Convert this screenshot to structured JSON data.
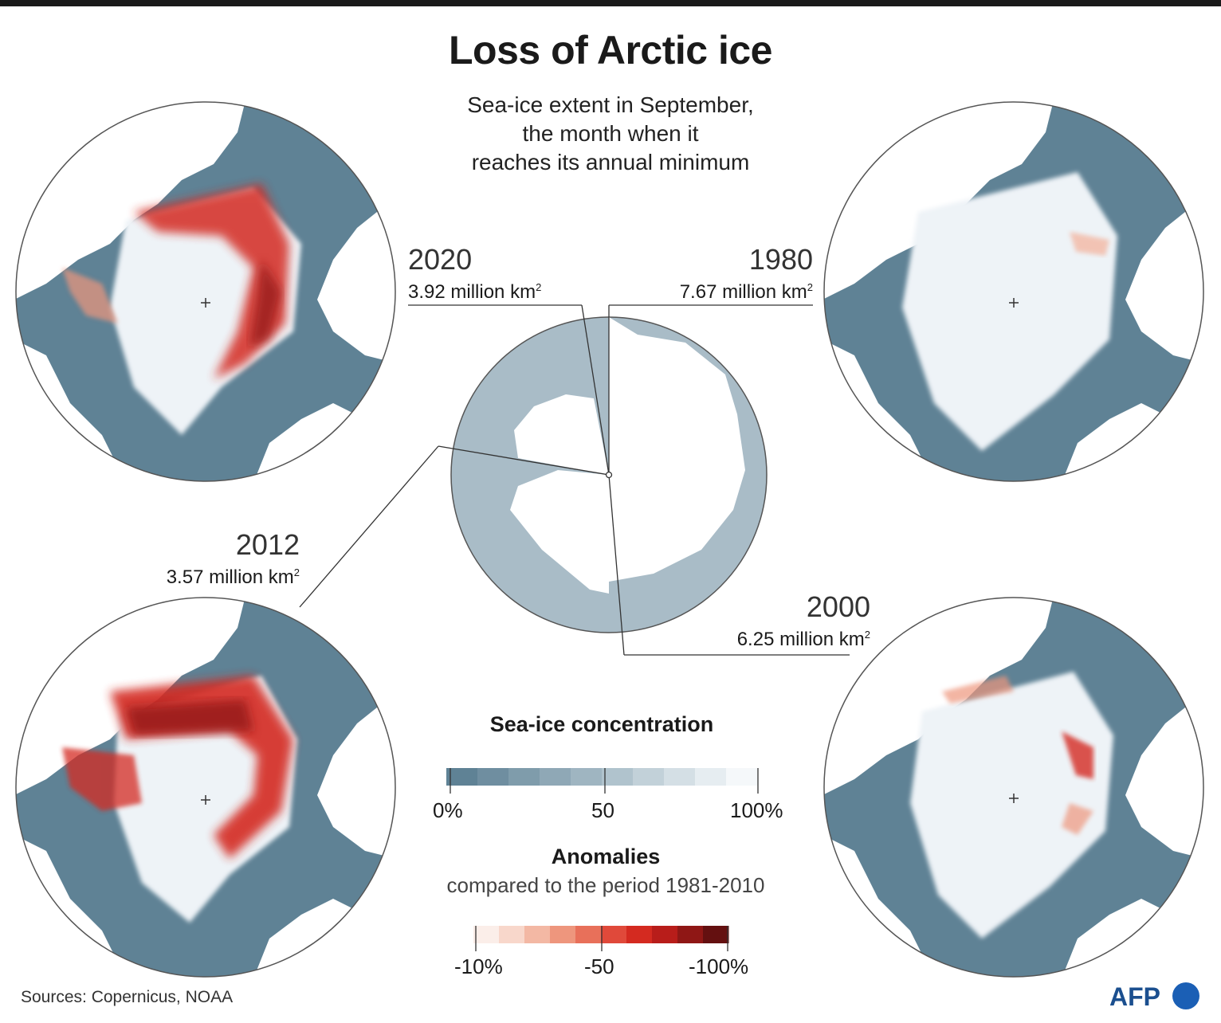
{
  "title": "Loss of Arctic ice",
  "subtitle_lines": [
    "Sea-ice extent in September,",
    "the month when it",
    "reaches its annual minimum"
  ],
  "maps": [
    {
      "year": "2020",
      "extent": "3.92 million km",
      "sup": "2"
    },
    {
      "year": "1980",
      "extent": "7.67 million km",
      "sup": "2"
    },
    {
      "year": "2012",
      "extent": "3.57 million km",
      "sup": "2"
    },
    {
      "year": "2000",
      "extent": "6.25 million km",
      "sup": "2"
    }
  ],
  "legend": {
    "concentration_title": "Sea-ice concentration",
    "concentration_ticks": [
      "0%",
      "50",
      "100%"
    ],
    "concentration_colors": [
      "#5f8295",
      "#6f8ea0",
      "#7f9cab",
      "#8fa8b6",
      "#9fb5c1",
      "#b0c3cd",
      "#c2d1d9",
      "#d4dfe5",
      "#e6edf1",
      "#f5f8fa"
    ],
    "anomalies_title": "Anomalies",
    "anomalies_subtitle": "compared to the period 1981-2010",
    "anomalies_ticks": [
      "-10%",
      "-50",
      "-100%"
    ],
    "anomaly_colors": [
      "#fbeee9",
      "#f8d7cb",
      "#f3b8a4",
      "#ee967d",
      "#e8705a",
      "#e0493a",
      "#d42a20",
      "#b81d1a",
      "#8f1715",
      "#641010"
    ]
  },
  "colors": {
    "ocean": "#5f8295",
    "land": "#ffffff",
    "ice": "#eef3f7",
    "center_disc": "#a9bcc7"
  },
  "source": "Sources: Copernicus, NOAA",
  "logo_text": "AFP"
}
